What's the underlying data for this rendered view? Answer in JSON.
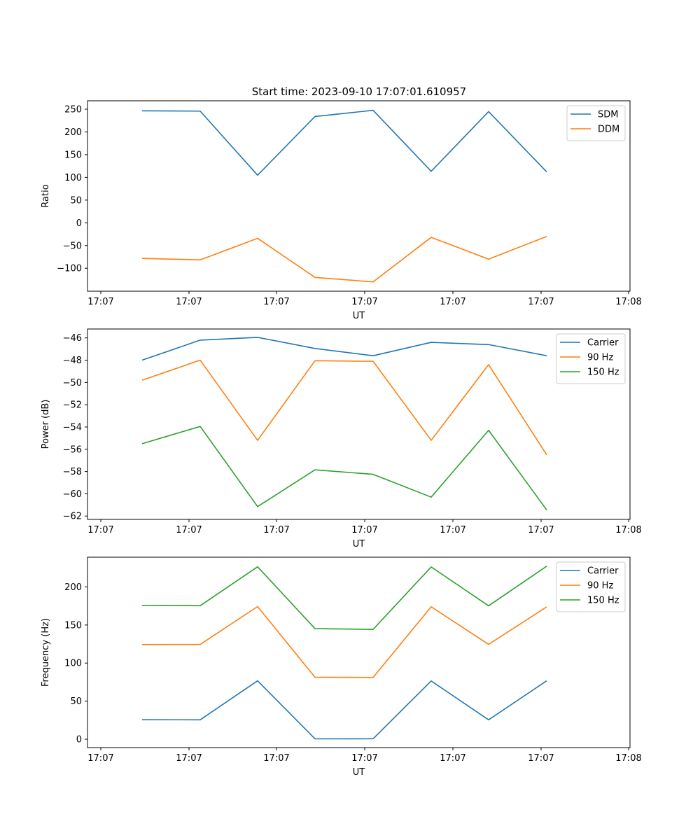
{
  "figure_title": "Start time: 2023-09-10 17:07:01.610957",
  "chart_data": [
    {
      "type": "line",
      "title": "Start time: 2023-09-10 17:07:01.610957",
      "xlabel": "UT",
      "ylabel": "Ratio",
      "x_tick_labels": [
        "17:07",
        "17:07",
        "17:07",
        "17:07",
        "17:07",
        "17:07",
        "17:08"
      ],
      "yticks": [
        -100,
        -50,
        0,
        50,
        100,
        150,
        200,
        250
      ],
      "ylim": [
        -150.5,
        268.5
      ],
      "legend_position": "upper right",
      "series": [
        {
          "name": "SDM",
          "color": "#1f77b4",
          "values": [
            246.5,
            245.8,
            104.7,
            233.9,
            247.6,
            113.4,
            244.7,
            112.1
          ]
        },
        {
          "name": "DDM",
          "color": "#ff7f0e",
          "values": [
            -78.4,
            -81.5,
            -34.1,
            -120.2,
            -130.0,
            -32.0,
            -80.0,
            -30.0
          ]
        }
      ]
    },
    {
      "type": "line",
      "title": "",
      "xlabel": "UT",
      "ylabel": "Power (dB)",
      "x_tick_labels": [
        "17:07",
        "17:07",
        "17:07",
        "17:07",
        "17:07",
        "17:07",
        "17:08"
      ],
      "yticks": [
        -62,
        -60,
        -58,
        -56,
        -54,
        -52,
        -50,
        -48,
        -46
      ],
      "ylim": [
        -62.3,
        -45.2
      ],
      "legend_position": "upper right",
      "series": [
        {
          "name": "Carrier",
          "color": "#1f77b4",
          "values": [
            -48.0,
            -46.2,
            -45.95,
            -46.95,
            -47.6,
            -46.4,
            -46.6,
            -47.6
          ]
        },
        {
          "name": "90 Hz",
          "color": "#ff7f0e",
          "values": [
            -49.8,
            -48.0,
            -55.2,
            -48.05,
            -48.1,
            -55.2,
            -48.4,
            -56.5
          ]
        },
        {
          "name": "150 Hz",
          "color": "#2ca02c",
          "values": [
            -55.5,
            -53.95,
            -61.15,
            -57.85,
            -58.25,
            -60.3,
            -54.3,
            -61.45
          ]
        }
      ]
    },
    {
      "type": "line",
      "title": "",
      "xlabel": "UT",
      "ylabel": "Frequency (Hz)",
      "x_tick_labels": [
        "17:07",
        "17:07",
        "17:07",
        "17:07",
        "17:07",
        "17:07",
        "17:08"
      ],
      "yticks": [
        0,
        50,
        100,
        150,
        200
      ],
      "ylim": [
        -11,
        239
      ],
      "legend_position": "upper right",
      "series": [
        {
          "name": "Carrier",
          "color": "#1f77b4",
          "values": [
            25.6,
            25.5,
            76.7,
            0.5,
            0.6,
            76.5,
            25.5,
            76.7
          ]
        },
        {
          "name": "90 Hz",
          "color": "#ff7f0e",
          "values": [
            124.3,
            124.4,
            174.2,
            81.4,
            81.1,
            173.9,
            124.5,
            173.8
          ]
        },
        {
          "name": "150 Hz",
          "color": "#2ca02c",
          "values": [
            175.8,
            175.3,
            226.4,
            145.2,
            144.2,
            226.2,
            175.2,
            227.2
          ]
        }
      ]
    }
  ]
}
